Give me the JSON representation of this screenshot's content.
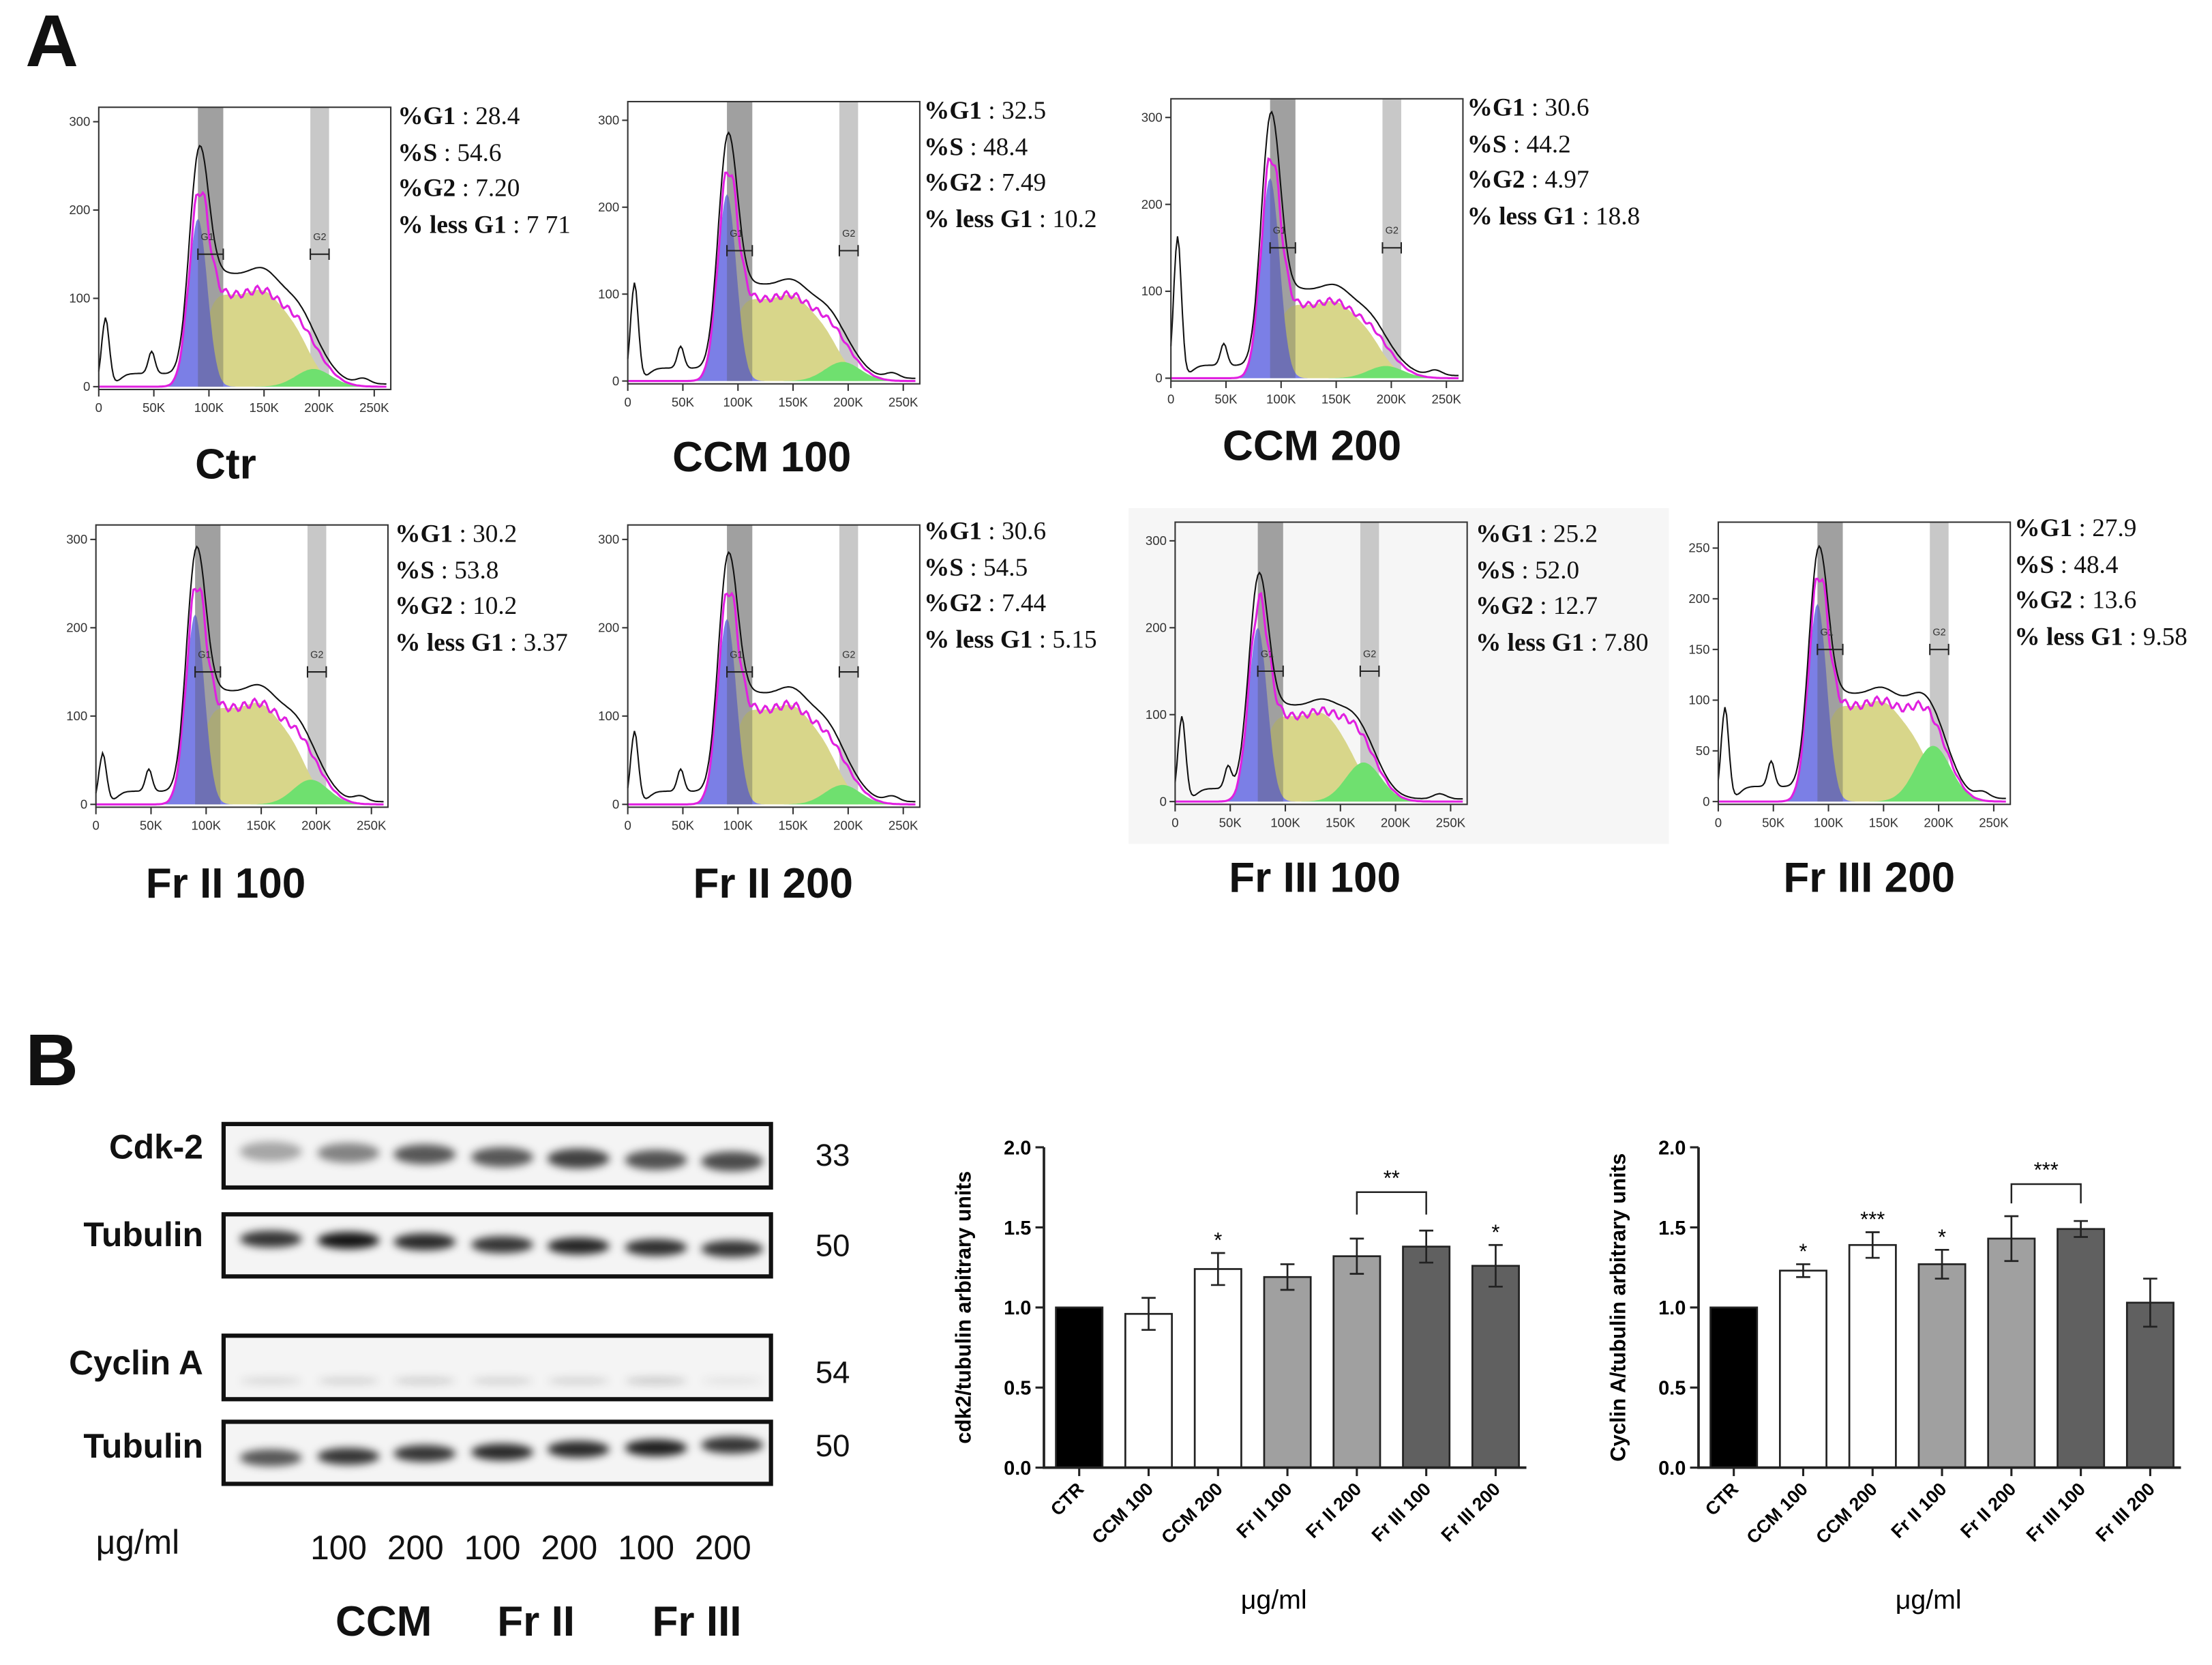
{
  "panel_a": {
    "letter": "A",
    "x_ticks": [
      "0",
      "50K",
      "100K",
      "150K",
      "200K",
      "250K"
    ],
    "gate_labels": {
      "g1": "G1",
      "g2": "G2"
    },
    "histograms": [
      {
        "condition": "Ctr",
        "y_ticks": [
          "0",
          "100",
          "200",
          "300"
        ],
        "stats": [
          {
            "label": "%G1",
            "value": " : 28.4"
          },
          {
            "label": "%S",
            "value": " : 54.6"
          },
          {
            "label": "%G2",
            "value": " : 7.20"
          },
          {
            "label": "% less G1",
            "value": " : 7 71"
          }
        ]
      },
      {
        "condition": "CCM 100",
        "y_ticks": [
          "0",
          "100",
          "200",
          "300"
        ],
        "stats": [
          {
            "label": "%G1",
            "value": " : 32.5"
          },
          {
            "label": "%S",
            "value": " : 48.4"
          },
          {
            "label": "%G2",
            "value": " : 7.49"
          },
          {
            "label": "% less G1",
            "value": " : 10.2"
          }
        ]
      },
      {
        "condition": "CCM 200",
        "y_ticks": [
          "0",
          "100",
          "200",
          "300"
        ],
        "stats": [
          {
            "label": "%G1",
            "value": " : 30.6"
          },
          {
            "label": "%S",
            "value": " : 44.2"
          },
          {
            "label": "%G2",
            "value": " : 4.97"
          },
          {
            "label": "% less G1",
            "value": " : 18.8"
          }
        ]
      },
      {
        "condition": "Fr II 100",
        "y_ticks": [
          "0",
          "100",
          "200",
          "300"
        ],
        "stats": [
          {
            "label": "%G1",
            "value": " : 30.2"
          },
          {
            "label": "%S",
            "value": " : 53.8"
          },
          {
            "label": "%G2",
            "value": " : 10.2"
          },
          {
            "label": "% less G1",
            "value": " : 3.37"
          }
        ]
      },
      {
        "condition": "Fr II 200",
        "y_ticks": [
          "0",
          "100",
          "200",
          "300"
        ],
        "stats": [
          {
            "label": "%G1",
            "value": " : 30.6"
          },
          {
            "label": "%S",
            "value": " : 54.5"
          },
          {
            "label": "%G2",
            "value": " : 7.44"
          },
          {
            "label": "% less G1",
            "value": " : 5.15"
          }
        ]
      },
      {
        "condition": "Fr III 100",
        "y_ticks": [
          "0",
          "100",
          "200",
          "300"
        ],
        "stats": [
          {
            "label": "%G1",
            "value": " : 25.2"
          },
          {
            "label": "%S",
            "value": " : 52.0"
          },
          {
            "label": "%G2",
            "value": " : 12.7"
          },
          {
            "label": "% less G1",
            "value": " : 7.80"
          }
        ]
      },
      {
        "condition": "Fr III 200",
        "y_ticks": [
          "0",
          "50",
          "100",
          "150",
          "200",
          "250"
        ],
        "stats": [
          {
            "label": "%G1",
            "value": " : 27.9"
          },
          {
            "label": "%S",
            "value": " : 48.4"
          },
          {
            "label": "%G2",
            "value": " : 13.6"
          },
          {
            "label": "% less G1",
            "value": " : 9.58"
          }
        ]
      }
    ]
  },
  "panel_b": {
    "letter": "B",
    "blots": [
      {
        "label": "Cdk-2",
        "mw": "33"
      },
      {
        "label": "Tubulin",
        "mw": "50"
      },
      {
        "label": "Cyclin A",
        "mw": "54"
      },
      {
        "label": "Tubulin",
        "mw": "50"
      }
    ],
    "unit_label": "μg/ml",
    "doses": [
      "100",
      "200",
      "100",
      "200",
      "100",
      "200"
    ],
    "groups": [
      "CCM",
      "Fr II",
      "Fr III"
    ]
  },
  "colors": {
    "g1": "#7b7fe6",
    "s": "#d8d68a",
    "g2": "#6fe06f",
    "model": "#e020e0",
    "ctr_bar": "#000000",
    "ccm_bar": "#ffffff",
    "frii_bar": "#a0a0a0",
    "friii_bar": "#606060"
  },
  "chart_data": [
    {
      "type": "bar",
      "title": "",
      "xlabel": "μg/ml",
      "ylabel": "cdk2/tubulin arbitrary units",
      "ylim": [
        0,
        2.0
      ],
      "y_ticks": [
        "0.0",
        "0.5",
        "1.0",
        "1.5",
        "2.0"
      ],
      "categories": [
        "CTR",
        "CCM 100",
        "CCM 200",
        "Fr II 100",
        "Fr II 200",
        "Fr III 100",
        "Fr III 200"
      ],
      "values": [
        1.0,
        0.96,
        1.24,
        1.19,
        1.32,
        1.38,
        1.26
      ],
      "errors": [
        0,
        0.1,
        0.1,
        0.08,
        0.11,
        0.1,
        0.13
      ],
      "significance": [
        "",
        "",
        "*",
        "",
        "",
        "",
        "*"
      ],
      "bracket": {
        "from": "Fr II 200",
        "to": "Fr III 100",
        "label": "**"
      }
    },
    {
      "type": "bar",
      "title": "",
      "xlabel": "μg/ml",
      "ylabel": "Cyclin A/tubulin arbitrary units",
      "ylim": [
        0,
        2.0
      ],
      "y_ticks": [
        "0.0",
        "0.5",
        "1.0",
        "1.5",
        "2.0"
      ],
      "categories": [
        "CTR",
        "CCM 100",
        "CCM 200",
        "Fr II 100",
        "Fr II 200",
        "Fr III 100",
        "Fr III 200"
      ],
      "values": [
        1.0,
        1.23,
        1.39,
        1.27,
        1.43,
        1.49,
        1.03
      ],
      "errors": [
        0,
        0.04,
        0.08,
        0.09,
        0.14,
        0.05,
        0.15
      ],
      "significance": [
        "",
        "*",
        "***",
        "*",
        "",
        "",
        ""
      ],
      "bracket": {
        "from": "Fr II 200",
        "to": "Fr III 100",
        "label": "***"
      }
    }
  ]
}
